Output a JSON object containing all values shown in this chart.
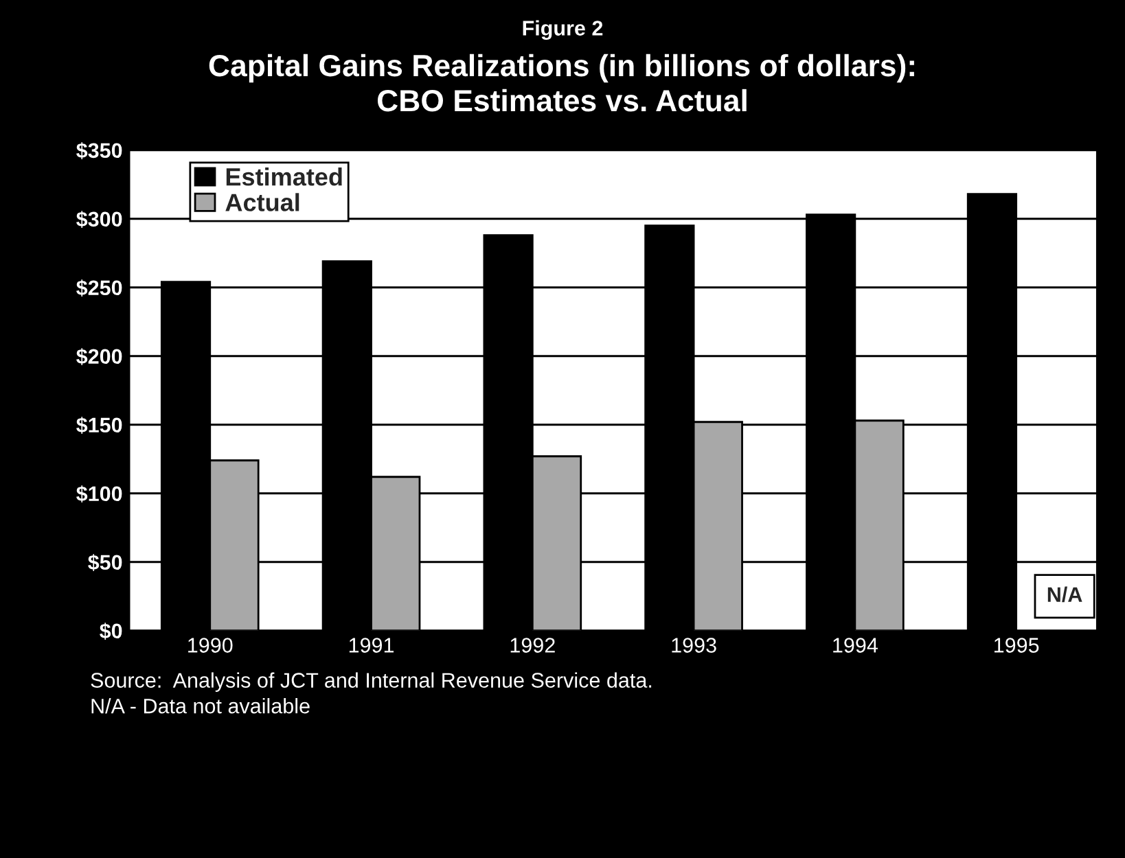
{
  "chart_data": {
    "type": "bar",
    "subtitle": "Figure 2",
    "title": "Capital Gains Realizations (in billions of dollars):\nCBO Estimates vs. Actual",
    "categories": [
      "1990",
      "1991",
      "1992",
      "1993",
      "1994",
      "1995"
    ],
    "series": [
      {
        "name": "Estimated",
        "color": "#000000",
        "values": [
          254,
          269,
          288,
          295,
          303,
          318
        ]
      },
      {
        "name": "Actual",
        "color": "#a8a8a8",
        "values": [
          124,
          112,
          127,
          152,
          153,
          null
        ]
      }
    ],
    "ylim": [
      0,
      350
    ],
    "yticks": [
      {
        "value": 0,
        "label": "$0"
      },
      {
        "value": 50,
        "label": "$50"
      },
      {
        "value": 100,
        "label": "$100"
      },
      {
        "value": 150,
        "label": "$150"
      },
      {
        "value": 200,
        "label": "$200"
      },
      {
        "value": 250,
        "label": "$250"
      },
      {
        "value": 300,
        "label": "$300"
      },
      {
        "value": 350,
        "label": "$350"
      }
    ],
    "grid": "y",
    "legend": "top left",
    "annotations": [
      {
        "text": "N/A",
        "x": "1995",
        "y": 25
      },
      "Source:  Analysis of JCT and Internal Revenue Service data.",
      "N/A - Data not available"
    ]
  }
}
